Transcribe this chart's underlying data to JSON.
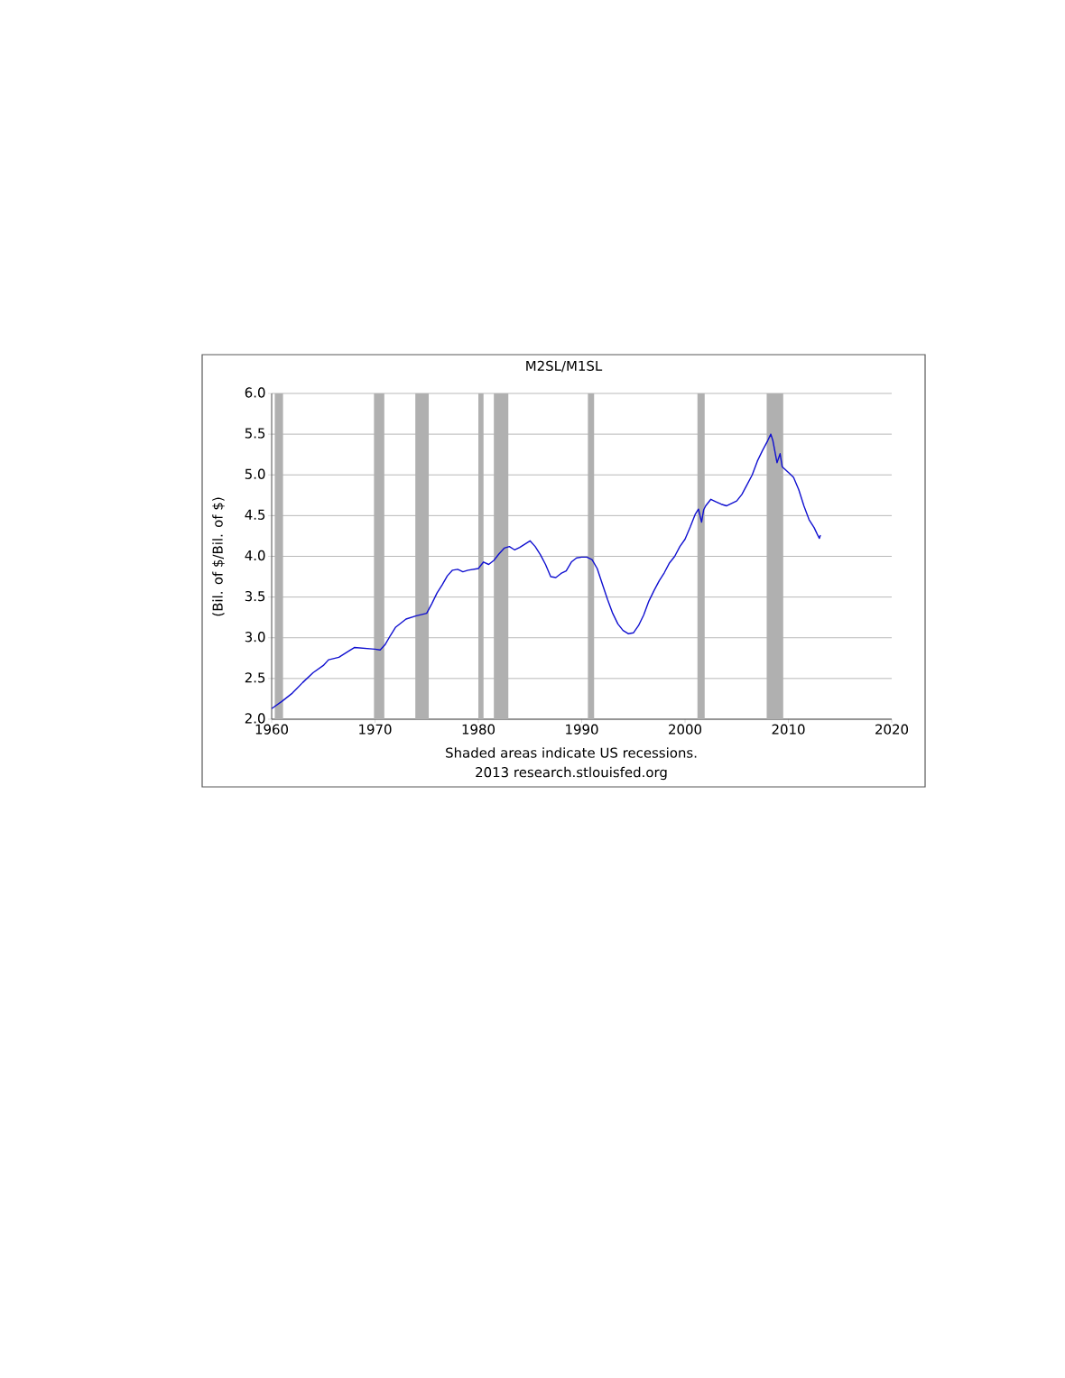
{
  "chart_data": {
    "type": "line",
    "title": "M2SL/M1SL",
    "ylabel": "(Bil. of $/Bil. of $)",
    "annotations": [
      "Shaded areas indicate US recessions.",
      "2013 research.stlouisfed.org"
    ],
    "xlim": [
      1960,
      2020
    ],
    "xticks": [
      1960,
      1970,
      1980,
      1990,
      2000,
      2010,
      2020
    ],
    "ylim": [
      2,
      6
    ],
    "yticks": [
      {
        "value": 2,
        "label": "2.0"
      },
      {
        "value": 2.5,
        "label": "2.5"
      },
      {
        "value": 3,
        "label": "3.0"
      },
      {
        "value": 3.5,
        "label": "3.5"
      },
      {
        "value": 4,
        "label": "4.0"
      },
      {
        "value": 4.5,
        "label": "4.5"
      },
      {
        "value": 5,
        "label": "5.0"
      },
      {
        "value": 5.5,
        "label": "5.5"
      },
      {
        "value": 6,
        "label": "6.0"
      }
    ],
    "grid": "y",
    "bands": [
      {
        "axis": "x",
        "from": 1960.3,
        "to": 1961.1,
        "color": "#b0b0b0"
      },
      {
        "axis": "x",
        "from": 1969.9,
        "to": 1970.9,
        "color": "#b0b0b0"
      },
      {
        "axis": "x",
        "from": 1973.9,
        "to": 1975.2,
        "color": "#b0b0b0"
      },
      {
        "axis": "x",
        "from": 1980.0,
        "to": 1980.5,
        "color": "#b0b0b0"
      },
      {
        "axis": "x",
        "from": 1981.5,
        "to": 1982.9,
        "color": "#b0b0b0"
      },
      {
        "axis": "x",
        "from": 1990.6,
        "to": 1991.2,
        "color": "#b0b0b0"
      },
      {
        "axis": "x",
        "from": 2001.2,
        "to": 2001.9,
        "color": "#b0b0b0"
      },
      {
        "axis": "x",
        "from": 2007.9,
        "to": 2009.5,
        "color": "#b0b0b0"
      }
    ],
    "series": [
      {
        "color": "#1010d0",
        "x": [
          1960,
          1961,
          1962,
          1963,
          1964,
          1965,
          1965.5,
          1966.5,
          1967.5,
          1968,
          1969,
          1970,
          1970.5,
          1971,
          1971.5,
          1972,
          1973,
          1974,
          1975,
          1975.5,
          1976,
          1976.5,
          1977,
          1977.5,
          1978,
          1978.5,
          1979,
          1980,
          1980.5,
          1981,
          1981.5,
          1982,
          1982.5,
          1983,
          1983.5,
          1984,
          1985,
          1985.5,
          1986,
          1986.5,
          1987,
          1987.5,
          1988,
          1988.5,
          1989,
          1989.5,
          1990,
          1990.5,
          1991,
          1991.5,
          1992,
          1992.5,
          1993,
          1993.5,
          1994,
          1994.5,
          1995,
          1995.5,
          1996,
          1996.5,
          1997,
          1997.5,
          1998,
          1998.5,
          1999,
          1999.5,
          2000,
          2000.5,
          2001,
          2001.3,
          2001.6,
          2001.8,
          2002,
          2002.5,
          2003,
          2003.5,
          2004,
          2004.5,
          2005,
          2005.5,
          2006,
          2006.5,
          2007,
          2007.5,
          2008,
          2008.3,
          2008.5,
          2008.9,
          2009.2,
          2009.4,
          2010,
          2010.5,
          2011,
          2011.5,
          2012,
          2012.5,
          2012.8,
          2013,
          2013.1
        ],
        "values": [
          2.13,
          2.22,
          2.32,
          2.45,
          2.57,
          2.66,
          2.73,
          2.76,
          2.84,
          2.88,
          2.87,
          2.86,
          2.85,
          2.92,
          3.03,
          3.13,
          3.23,
          3.27,
          3.3,
          3.42,
          3.55,
          3.65,
          3.76,
          3.83,
          3.84,
          3.81,
          3.83,
          3.85,
          3.93,
          3.9,
          3.95,
          4.03,
          4.1,
          4.12,
          4.08,
          4.11,
          4.19,
          4.12,
          4.02,
          3.9,
          3.75,
          3.74,
          3.79,
          3.82,
          3.93,
          3.98,
          3.99,
          3.99,
          3.96,
          3.85,
          3.66,
          3.47,
          3.3,
          3.17,
          3.09,
          3.05,
          3.06,
          3.15,
          3.28,
          3.45,
          3.58,
          3.7,
          3.8,
          3.92,
          4.0,
          4.12,
          4.21,
          4.36,
          4.52,
          4.58,
          4.42,
          4.57,
          4.62,
          4.7,
          4.67,
          4.64,
          4.62,
          4.65,
          4.68,
          4.76,
          4.88,
          5.0,
          5.17,
          5.3,
          5.42,
          5.5,
          5.42,
          5.15,
          5.26,
          5.1,
          5.03,
          4.97,
          4.82,
          4.62,
          4.45,
          4.35,
          4.27,
          4.22,
          4.26
        ]
      }
    ]
  }
}
